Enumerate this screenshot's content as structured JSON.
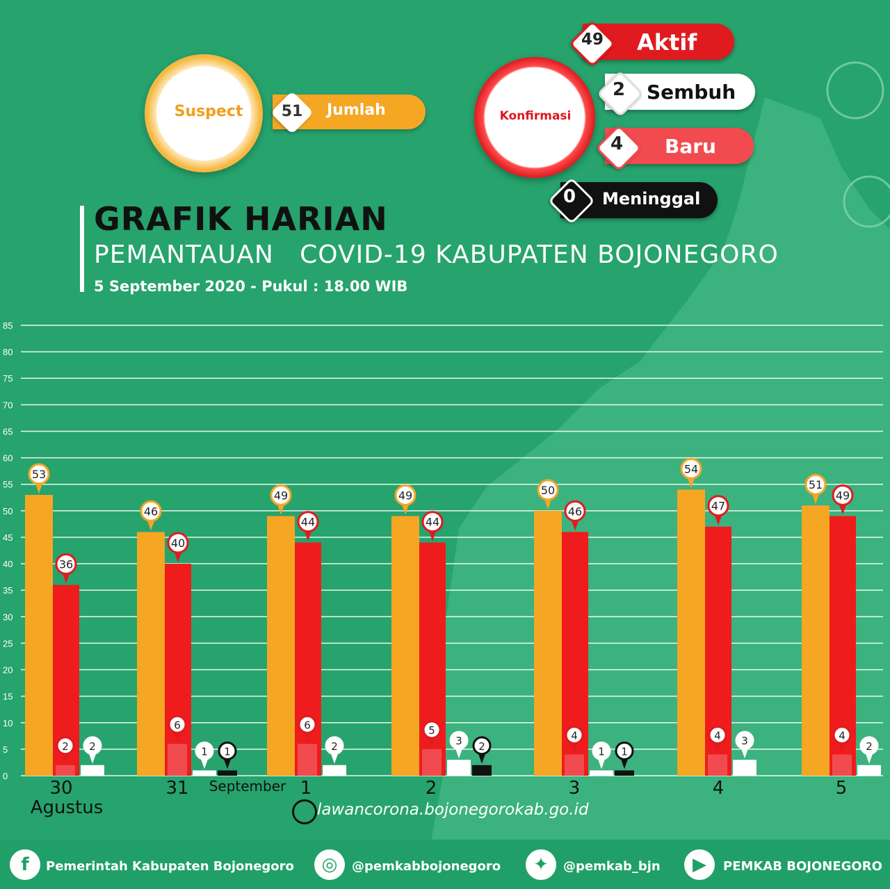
{
  "suspect": {
    "label": "Suspect",
    "value": "51",
    "sublabel": "Jumlah"
  },
  "konfirmasi": {
    "label": "Konfirmasi",
    "aktif": {
      "value": "49",
      "label": "Aktif"
    },
    "sembuh": {
      "value": "2",
      "label": "Sembuh"
    },
    "baru": {
      "value": "4",
      "label": "Baru"
    },
    "meninggal": {
      "value": "0",
      "label": "Meninggal"
    }
  },
  "header": {
    "title": "GRAFIK HARIAN",
    "subtitle": "PEMANTAUAN   COVID-19 KABUPATEN BOJONEGORO",
    "datetime": "5 September 2020 - Pukul : 18.00 WIB"
  },
  "website": "lawancorona.bojonegorokab.go.id",
  "footer": {
    "facebook": "Pemerintah Kabupaten Bojonegoro",
    "instagram": "@pemkabbojonegoro",
    "twitter": "@pemkab_bjn",
    "youtube": "PEMKAB BOJONEGORO"
  },
  "colors": {
    "background": "#27a36d",
    "suspect": "#f5a623",
    "aktif": "#ee1c1c",
    "baru": "#f24b4f",
    "sembuh": "#ffffff",
    "meninggal": "#111111"
  },
  "icons": [
    "facebook-icon",
    "instagram-icon",
    "twitter-icon",
    "youtube-icon",
    "globe-icon",
    "virus-icon"
  ],
  "chart_data": {
    "type": "bar",
    "categories": [
      "30",
      "31",
      "1",
      "2",
      "3",
      "4",
      "5"
    ],
    "month_labels": {
      "0": "Agustus",
      "2": "September"
    },
    "ylim": [
      0,
      85
    ],
    "yticks": [
      0,
      5,
      10,
      15,
      20,
      25,
      30,
      35,
      40,
      45,
      50,
      55,
      60,
      65,
      70,
      75,
      80,
      85
    ],
    "grid": true,
    "series": [
      {
        "key": "suspect",
        "values": [
          53,
          46,
          49,
          49,
          50,
          54,
          51
        ]
      },
      {
        "key": "aktif",
        "values": [
          36,
          40,
          44,
          44,
          46,
          47,
          49
        ]
      },
      {
        "key": "baru",
        "values": [
          2,
          6,
          6,
          5,
          4,
          4,
          4
        ]
      },
      {
        "key": "sembuh",
        "values": [
          2,
          1,
          2,
          3,
          1,
          3,
          2
        ]
      },
      {
        "key": "meninggal",
        "values": [
          null,
          1,
          null,
          2,
          1,
          null,
          null
        ]
      }
    ]
  }
}
